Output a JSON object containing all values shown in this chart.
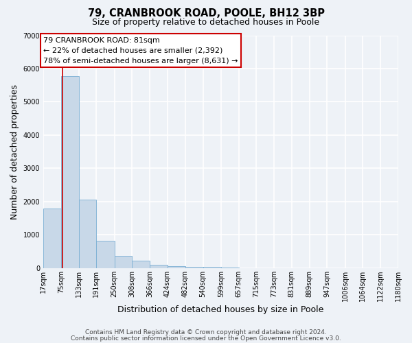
{
  "title": "79, CRANBROOK ROAD, POOLE, BH12 3BP",
  "subtitle": "Size of property relative to detached houses in Poole",
  "xlabel": "Distribution of detached houses by size in Poole",
  "ylabel": "Number of detached properties",
  "bin_edges": [
    17,
    75,
    133,
    191,
    250,
    308,
    366,
    424,
    482,
    540,
    599,
    657,
    715,
    773,
    831,
    889,
    947,
    1006,
    1064,
    1122,
    1180
  ],
  "bar_heights": [
    1780,
    5780,
    2050,
    820,
    370,
    220,
    100,
    50,
    30,
    30,
    20,
    0,
    0,
    0,
    0,
    0,
    0,
    0,
    0,
    0
  ],
  "bar_color": "#c8d8e8",
  "bar_edge_color": "#7bafd4",
  "ylim": [
    0,
    7000
  ],
  "yticks": [
    0,
    1000,
    2000,
    3000,
    4000,
    5000,
    6000,
    7000
  ],
  "xtick_labels": [
    "17sqm",
    "75sqm",
    "133sqm",
    "191sqm",
    "250sqm",
    "308sqm",
    "366sqm",
    "424sqm",
    "482sqm",
    "540sqm",
    "599sqm",
    "657sqm",
    "715sqm",
    "773sqm",
    "831sqm",
    "889sqm",
    "947sqm",
    "1006sqm",
    "1064sqm",
    "1122sqm",
    "1180sqm"
  ],
  "property_line_x": 81,
  "property_line_color": "#cc0000",
  "annotation_line1": "79 CRANBROOK ROAD: 81sqm",
  "annotation_line2": "← 22% of detached houses are smaller (2,392)",
  "annotation_line3": "78% of semi-detached houses are larger (8,631) →",
  "footer_line1": "Contains HM Land Registry data © Crown copyright and database right 2024.",
  "footer_line2": "Contains public sector information licensed under the Open Government Licence v3.0.",
  "background_color": "#eef2f7",
  "grid_color": "#ffffff",
  "title_fontsize": 10.5,
  "subtitle_fontsize": 9,
  "axis_label_fontsize": 9,
  "tick_fontsize": 7,
  "annotation_fontsize": 8,
  "footer_fontsize": 6.5
}
